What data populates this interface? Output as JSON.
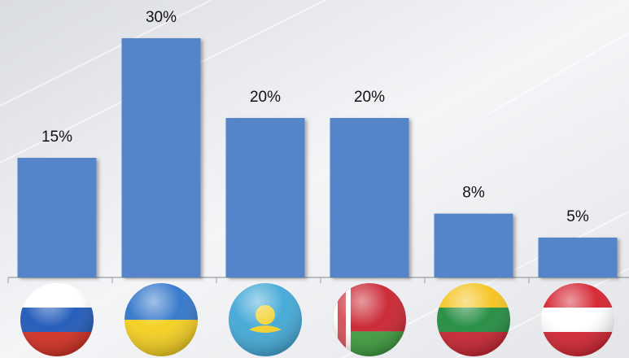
{
  "chart_data": {
    "type": "bar",
    "categories": [
      null,
      null,
      null,
      null,
      null,
      null
    ],
    "values": [
      15,
      30,
      20,
      20,
      8,
      5
    ],
    "value_labels": [
      "15%",
      "30%",
      "20%",
      "20%",
      "8%",
      "5%"
    ],
    "color": "#5585c8"
  }
}
